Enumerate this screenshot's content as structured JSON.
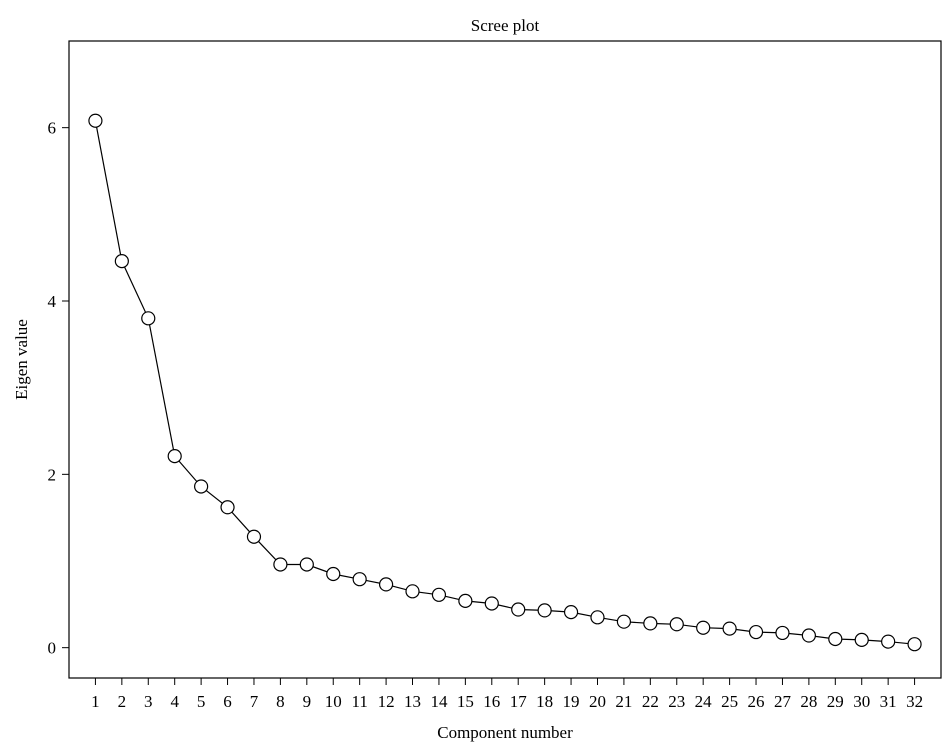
{
  "chart_data": {
    "type": "line",
    "title": "Scree plot",
    "xlabel": "Component number",
    "ylabel": "Eigen value",
    "x": [
      1,
      2,
      3,
      4,
      5,
      6,
      7,
      8,
      9,
      10,
      11,
      12,
      13,
      14,
      15,
      16,
      17,
      18,
      19,
      20,
      21,
      22,
      23,
      24,
      25,
      26,
      27,
      28,
      29,
      30,
      31,
      32
    ],
    "y": [
      6.08,
      4.46,
      3.8,
      2.21,
      1.86,
      1.62,
      1.28,
      0.96,
      0.96,
      0.85,
      0.79,
      0.73,
      0.65,
      0.61,
      0.54,
      0.51,
      0.44,
      0.43,
      0.41,
      0.35,
      0.3,
      0.28,
      0.27,
      0.23,
      0.22,
      0.18,
      0.17,
      0.14,
      0.1,
      0.09,
      0.07,
      0.04
    ],
    "xticks": [
      "1",
      "2",
      "3",
      "4",
      "5",
      "6",
      "7",
      "8",
      "9",
      "10",
      "11",
      "12",
      "13",
      "14",
      "15",
      "16",
      "17",
      "18",
      "19",
      "20",
      "21",
      "22",
      "23",
      "24",
      "25",
      "26",
      "27",
      "28",
      "29",
      "30",
      "31",
      "32"
    ],
    "yticks": [
      0,
      2,
      4,
      6
    ],
    "ylim": [
      -0.35,
      7.0
    ],
    "xlim": [
      0,
      33
    ],
    "grid": false,
    "legend": "none",
    "line_color": "#000000",
    "marker": "open-circle"
  }
}
